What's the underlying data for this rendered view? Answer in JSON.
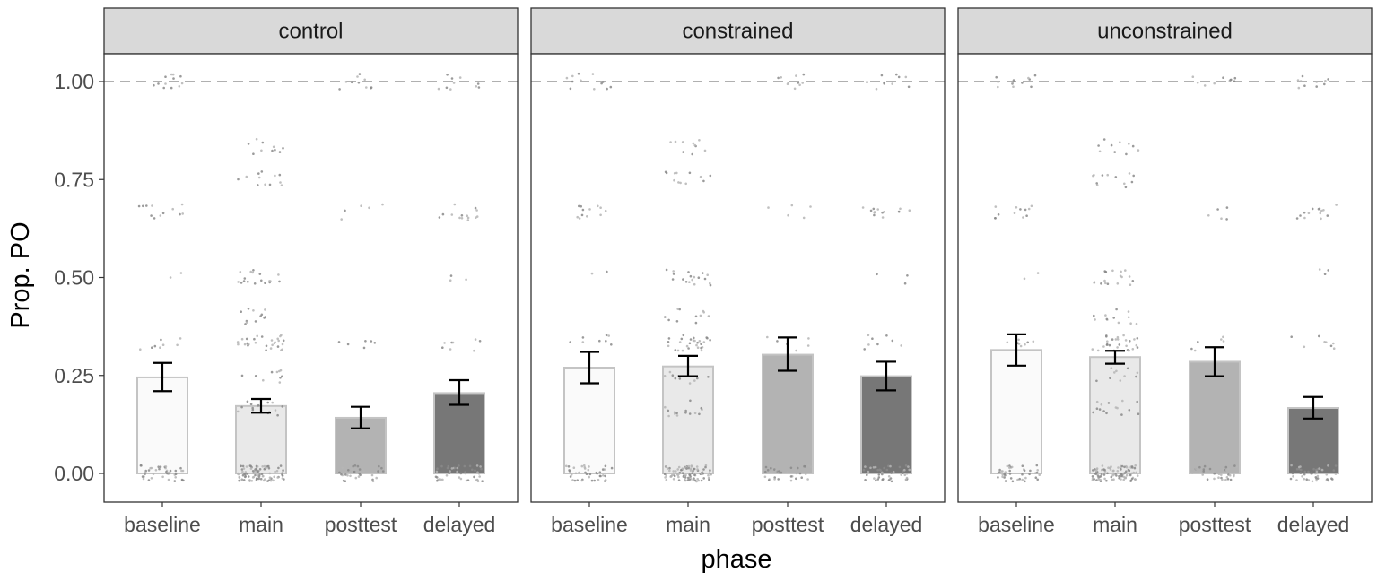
{
  "chart_data": {
    "type": "bar",
    "xlabel": "phase",
    "ylabel": "Prop. PO",
    "ylim": [
      -0.07,
      1.07
    ],
    "y_ticks": [
      "0.00",
      "0.25",
      "0.50",
      "0.75",
      "1.00"
    ],
    "y_tick_values": [
      0,
      0.25,
      0.5,
      0.75,
      1.0
    ],
    "reference_line": 1.0,
    "categories": [
      "baseline",
      "main",
      "posttest",
      "delayed"
    ],
    "bar_fills": [
      "#fafafa",
      "#e9e9e9",
      "#b3b3b3",
      "#777777"
    ],
    "bar_outline": "#c4c4c4",
    "grid": false,
    "legend": "none",
    "panels": [
      {
        "name": "control",
        "means": [
          0.245,
          0.172,
          0.142,
          0.205
        ],
        "error_low": [
          0.21,
          0.155,
          0.115,
          0.175
        ],
        "error_high": [
          0.282,
          0.19,
          0.17,
          0.238
        ]
      },
      {
        "name": "constrained",
        "means": [
          0.27,
          0.273,
          0.303,
          0.248
        ],
        "error_low": [
          0.23,
          0.248,
          0.262,
          0.212
        ],
        "error_high": [
          0.31,
          0.3,
          0.347,
          0.285
        ]
      },
      {
        "name": "unconstrained",
        "means": [
          0.315,
          0.297,
          0.285,
          0.167
        ],
        "error_low": [
          0.275,
          0.28,
          0.248,
          0.14
        ],
        "error_high": [
          0.355,
          0.313,
          0.322,
          0.195
        ]
      }
    ],
    "jitter_levels": [
      [
        {
          "y": 0,
          "n": 40
        },
        {
          "y": 0.333,
          "n": 8
        },
        {
          "y": 0.5,
          "n": 2
        },
        {
          "y": 0.667,
          "n": 12
        },
        {
          "y": 1.0,
          "n": 12
        }
      ],
      [
        {
          "y": 0,
          "n": 90
        },
        {
          "y": 0.167,
          "n": 15
        },
        {
          "y": 0.25,
          "n": 10
        },
        {
          "y": 0.333,
          "n": 28
        },
        {
          "y": 0.4,
          "n": 12
        },
        {
          "y": 0.5,
          "n": 18
        },
        {
          "y": 0.75,
          "n": 12
        },
        {
          "y": 0.833,
          "n": 10
        }
      ],
      [
        {
          "y": 0,
          "n": 35
        },
        {
          "y": 0.333,
          "n": 6
        },
        {
          "y": 0.667,
          "n": 5
        },
        {
          "y": 1.0,
          "n": 10
        }
      ],
      [
        {
          "y": 0,
          "n": 45
        },
        {
          "y": 0.333,
          "n": 8
        },
        {
          "y": 0.5,
          "n": 3
        },
        {
          "y": 0.667,
          "n": 14
        },
        {
          "y": 1.0,
          "n": 10
        }
      ]
    ]
  }
}
